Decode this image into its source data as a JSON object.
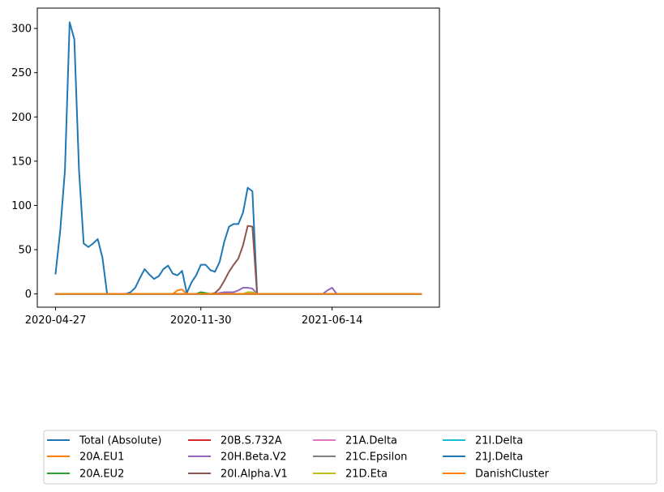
{
  "chart_data": {
    "type": "line",
    "title": "",
    "xlabel": "",
    "ylabel": "",
    "x_start": "2020-04-27",
    "x_end": "2021-10-25",
    "xticks": [
      "2020-04-27",
      "2020-11-30",
      "2021-06-14"
    ],
    "yticks": [
      0,
      50,
      100,
      150,
      200,
      250,
      300
    ],
    "ylim": [
      -15,
      323
    ],
    "grid": false,
    "legend_position": "bottom",
    "legend_columns": 5,
    "series": [
      {
        "name": "Total (Absolute)",
        "color": "#1f77b4",
        "points": [
          [
            "2020-04-27",
            23
          ],
          [
            "2020-05-04",
            72
          ],
          [
            "2020-05-11",
            140
          ],
          [
            "2020-05-18",
            307
          ],
          [
            "2020-05-25",
            288
          ],
          [
            "2020-06-01",
            140
          ],
          [
            "2020-06-08",
            57
          ],
          [
            "2020-06-15",
            53
          ],
          [
            "2020-06-22",
            57
          ],
          [
            "2020-06-29",
            62
          ],
          [
            "2020-07-06",
            41
          ],
          [
            "2020-07-13",
            0
          ],
          [
            "2020-07-20",
            0
          ],
          [
            "2020-07-27",
            0
          ],
          [
            "2020-08-03",
            0
          ],
          [
            "2020-08-10",
            0
          ],
          [
            "2020-08-17",
            2
          ],
          [
            "2020-08-24",
            7
          ],
          [
            "2020-08-31",
            18
          ],
          [
            "2020-09-07",
            28
          ],
          [
            "2020-09-14",
            22
          ],
          [
            "2020-09-21",
            17
          ],
          [
            "2020-09-28",
            20
          ],
          [
            "2020-10-05",
            28
          ],
          [
            "2020-10-12",
            32
          ],
          [
            "2020-10-19",
            23
          ],
          [
            "2020-10-26",
            21
          ],
          [
            "2020-11-02",
            26
          ],
          [
            "2020-11-09",
            1
          ],
          [
            "2020-11-16",
            13
          ],
          [
            "2020-11-23",
            21
          ],
          [
            "2020-11-30",
            33
          ],
          [
            "2020-12-07",
            33
          ],
          [
            "2020-12-14",
            27
          ],
          [
            "2020-12-21",
            25
          ],
          [
            "2020-12-28",
            36
          ],
          [
            "2021-01-04",
            59
          ],
          [
            "2021-01-11",
            76
          ],
          [
            "2021-01-18",
            79
          ],
          [
            "2021-01-25",
            79
          ],
          [
            "2021-02-01",
            92
          ],
          [
            "2021-02-08",
            120
          ],
          [
            "2021-02-15",
            116
          ],
          [
            "2021-02-22",
            0
          ],
          [
            "2021-06-07",
            0
          ],
          [
            "2021-06-14",
            0
          ],
          [
            "2021-10-25",
            0
          ]
        ]
      },
      {
        "name": "20A.EU1",
        "color": "#ff7f0e",
        "points": [
          [
            "2020-04-27",
            0
          ],
          [
            "2020-10-19",
            0
          ],
          [
            "2020-10-26",
            4
          ],
          [
            "2020-11-02",
            5
          ],
          [
            "2020-11-09",
            0
          ],
          [
            "2021-10-25",
            0
          ]
        ]
      },
      {
        "name": "20A.EU2",
        "color": "#2ca02c",
        "points": [
          [
            "2020-04-27",
            0
          ],
          [
            "2020-11-23",
            0
          ],
          [
            "2020-11-30",
            2
          ],
          [
            "2020-12-07",
            1
          ],
          [
            "2020-12-14",
            0
          ],
          [
            "2021-10-25",
            0
          ]
        ]
      },
      {
        "name": "20B.S.732A",
        "color": "#d62728",
        "points": [
          [
            "2020-04-27",
            0
          ],
          [
            "2021-10-25",
            0
          ]
        ]
      },
      {
        "name": "20H.Beta.V2",
        "color": "#9467bd",
        "points": [
          [
            "2020-04-27",
            0
          ],
          [
            "2020-12-21",
            0
          ],
          [
            "2020-12-28",
            1
          ],
          [
            "2021-01-04",
            2
          ],
          [
            "2021-01-11",
            2
          ],
          [
            "2021-01-18",
            2
          ],
          [
            "2021-01-25",
            4
          ],
          [
            "2021-02-01",
            7
          ],
          [
            "2021-02-08",
            7
          ],
          [
            "2021-02-15",
            6
          ],
          [
            "2021-02-22",
            0
          ],
          [
            "2021-05-31",
            0
          ],
          [
            "2021-06-07",
            4
          ],
          [
            "2021-06-14",
            7
          ],
          [
            "2021-06-21",
            0
          ],
          [
            "2021-10-25",
            0
          ]
        ]
      },
      {
        "name": "20I.Alpha.V1",
        "color": "#8c564b",
        "points": [
          [
            "2020-04-27",
            0
          ],
          [
            "2020-12-14",
            0
          ],
          [
            "2020-12-21",
            1
          ],
          [
            "2020-12-28",
            6
          ],
          [
            "2021-01-04",
            15
          ],
          [
            "2021-01-11",
            25
          ],
          [
            "2021-01-18",
            33
          ],
          [
            "2021-01-25",
            40
          ],
          [
            "2021-02-01",
            55
          ],
          [
            "2021-02-08",
            77
          ],
          [
            "2021-02-15",
            76
          ],
          [
            "2021-02-22",
            0
          ],
          [
            "2021-10-25",
            0
          ]
        ]
      },
      {
        "name": "21A.Delta",
        "color": "#e377c2",
        "points": [
          [
            "2020-04-27",
            0
          ],
          [
            "2021-10-25",
            0
          ]
        ]
      },
      {
        "name": "21C.Epsilon",
        "color": "#7f7f7f",
        "points": [
          [
            "2020-04-27",
            0
          ],
          [
            "2021-10-25",
            0
          ]
        ]
      },
      {
        "name": "21D.Eta",
        "color": "#bcbd22",
        "points": [
          [
            "2020-04-27",
            0
          ],
          [
            "2021-02-01",
            0
          ],
          [
            "2021-02-08",
            2
          ],
          [
            "2021-02-15",
            2
          ],
          [
            "2021-02-22",
            0
          ],
          [
            "2021-10-25",
            0
          ]
        ]
      },
      {
        "name": "21I.Delta",
        "color": "#17becf",
        "points": [
          [
            "2020-04-27",
            0
          ],
          [
            "2021-10-25",
            0
          ]
        ]
      },
      {
        "name": "21J.Delta",
        "color": "#1f77b4",
        "points": [
          [
            "2020-04-27",
            0
          ],
          [
            "2021-10-25",
            0
          ]
        ]
      },
      {
        "name": "DanishCluster",
        "color": "#ff7f0e",
        "points": [
          [
            "2020-04-27",
            0
          ],
          [
            "2021-10-25",
            0
          ]
        ]
      }
    ]
  }
}
